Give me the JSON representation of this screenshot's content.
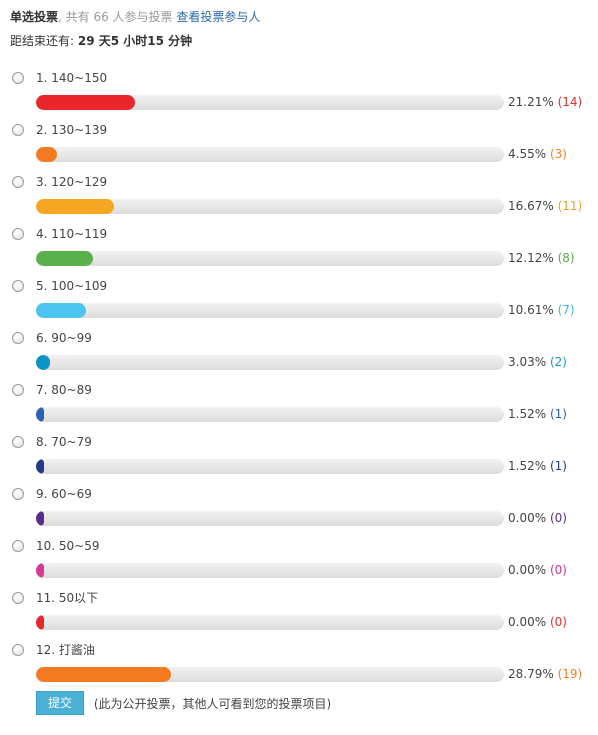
{
  "header": {
    "kind": "单选投票",
    "sep": ",",
    "participants": " 共有 66 人参与投票",
    "view_link": "查看投票参与人",
    "deadline_label": "距结束还有: ",
    "deadline_value": "29 天5 小时15 分钟"
  },
  "options": [
    {
      "label": "1.  140~150",
      "percent": 21.21,
      "percent_text": "21.21%",
      "count_text": "(14)",
      "color": "#e8262b",
      "count_color": "#d9322f"
    },
    {
      "label": "2.  130~139",
      "percent": 4.55,
      "percent_text": "4.55%",
      "count_text": "(3)",
      "color": "#f37a20",
      "count_color": "#f07f2a"
    },
    {
      "label": "3.  120~129",
      "percent": 16.67,
      "percent_text": "16.67%",
      "count_text": "(11)",
      "color": "#f5a623",
      "count_color": "#e8a02a"
    },
    {
      "label": "4.  110~119",
      "percent": 12.12,
      "percent_text": "12.12%",
      "count_text": "(8)",
      "color": "#5ab04a",
      "count_color": "#5aa84a"
    },
    {
      "label": "5.  100~109",
      "percent": 10.61,
      "percent_text": "10.61%",
      "count_text": "(7)",
      "color": "#4dc3ef",
      "count_color": "#41b7e6"
    },
    {
      "label": "6.  90~99",
      "percent": 3.03,
      "percent_text": "3.03%",
      "count_text": "(2)",
      "color": "#0c93c8",
      "count_color": "#1e95c6"
    },
    {
      "label": "7.  80~89",
      "percent": 1.52,
      "percent_text": "1.52%",
      "count_text": "(1)",
      "color": "#2e62ad",
      "count_color": "#2e62ad"
    },
    {
      "label": "8.  70~79",
      "percent": 1.52,
      "percent_text": "1.52%",
      "count_text": "(1)",
      "color": "#223a87",
      "count_color": "#223a87"
    },
    {
      "label": "9.  60~69",
      "percent": 0.0,
      "percent_text": "0.00%",
      "count_text": "(0)",
      "color": "#5b2c8c",
      "count_color": "#5b2c8c"
    },
    {
      "label": "10.  50~59",
      "percent": 0.0,
      "percent_text": "0.00%",
      "count_text": "(0)",
      "color": "#d63a97",
      "count_color": "#c23a8a"
    },
    {
      "label": "11.  50以下",
      "percent": 0.0,
      "percent_text": "0.00%",
      "count_text": "(0)",
      "color": "#e8262b",
      "count_color": "#d9322f"
    },
    {
      "label": "12.  打酱油",
      "percent": 28.79,
      "percent_text": "28.79%",
      "count_text": "(19)",
      "color": "#f37a20",
      "count_color": "#f07f2a"
    }
  ],
  "footer": {
    "submit_label": "提交",
    "note": "(此为公开投票，其他人可看到您的投票项目)"
  }
}
